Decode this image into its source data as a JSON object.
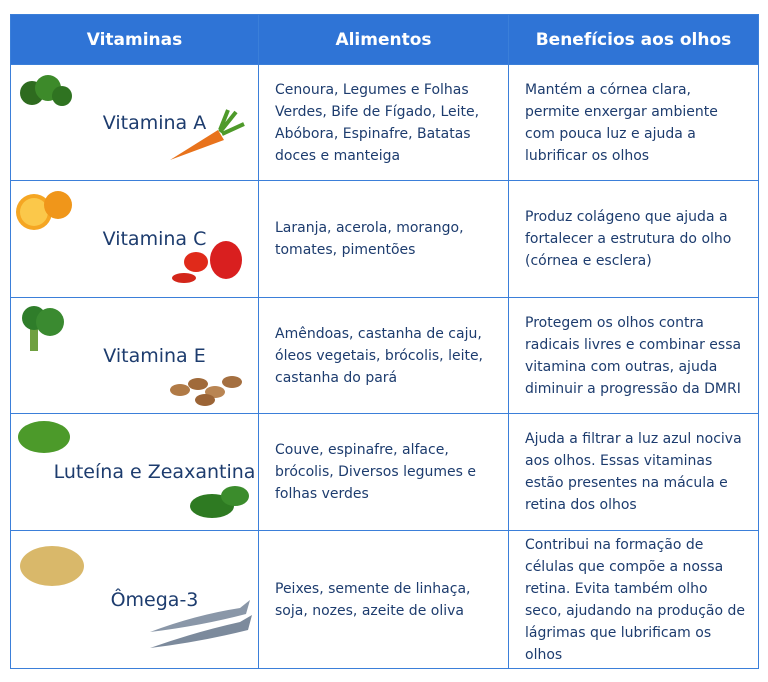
{
  "table": {
    "header": [
      "Vitaminas",
      "Alimentos",
      "Benefícios aos olhos"
    ],
    "rows": [
      [
        "Vitamina A",
        "Cenoura, Legumes e Folhas Verdes, Bife de Fígado, Leite, Abóbora, Espinafre, Batatas doces e manteiga",
        "Mantém a córnea clara, permite enxergar ambiente com pouca luz e ajuda a lubrificar os olhos"
      ],
      [
        "Vitamina C",
        "Laranja, acerola, morango, tomates, pimentões",
        "Produz colágeno que ajuda a fortalecer a estrutura do olho (córnea e esclera)"
      ],
      [
        "Vitamina E",
        "Amêndoas, castanha de caju, óleos vegetais, brócolis, leite, castanha do pará",
        "Protegem os olhos contra radicais livres e combinar essa vitamina com outras, ajuda diminuir a progressão da DMRI"
      ],
      [
        "Luteína e Zeaxantina",
        "Couve, espinafre, alface, brócolis, Diversos legumes e folhas verdes",
        "Ajuda a filtrar a luz azul nociva aos olhos. Essas vitaminas estão presentes na mácula e retina dos olhos"
      ],
      [
        "Ômega-3",
        "Peixes, semente de linhaça, soja, nozes, azeite de oliva",
        "Contribui na formação de células que compõe a nossa retina. Evita também olho seco, ajudando na produção de lágrimas que lubrificam os olhos"
      ]
    ]
  }
}
